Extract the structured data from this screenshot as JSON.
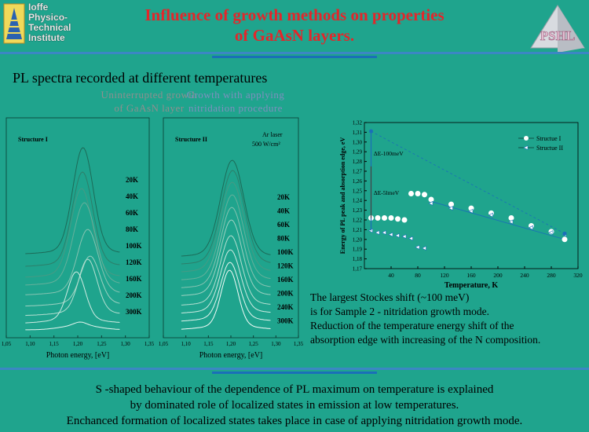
{
  "header": {
    "institute_lines": [
      "Ioffe",
      "Physico-",
      "Technical",
      "Institute"
    ],
    "title_line1": "Influence of growth methods on properties",
    "title_line2": "of  GaAsN layers.",
    "logo_right_text": "PSHL"
  },
  "subtitle": "PL spectra recorded at different temperatures",
  "left_column": {
    "heading_line1": "Uninterrupted growth",
    "heading_line2": "of GaAsN layer"
  },
  "right_column": {
    "heading_line1": "Growth with applying",
    "heading_line2": "nitridation procedure"
  },
  "colors": {
    "background": "#1fa48d",
    "title": "#e3262a",
    "accent_bar": "#1a6fb8",
    "series_1": "#ffffff",
    "series_2": "#1a6fb8"
  },
  "chart_data": [
    {
      "type": "line",
      "panel": "structure-1",
      "annotation": "Structure I",
      "xlabel": "Photon energy, [eV]",
      "xlim": [
        1.05,
        1.35
      ],
      "ylabel": "",
      "x_ticks": [
        "1,05",
        "1,10",
        "1,15",
        "1,20",
        "1,25",
        "1,30",
        "1,35"
      ],
      "series": [
        {
          "name": "20K",
          "peak_eV": 1.211,
          "width": 0.03,
          "amp": 130,
          "offset": 96
        },
        {
          "name": "40K",
          "peak_eV": 1.21,
          "width": 0.03,
          "amp": 115,
          "offset": 80
        },
        {
          "name": "60K",
          "peak_eV": 1.208,
          "width": 0.031,
          "amp": 108,
          "offset": 66
        },
        {
          "name": "80K",
          "peak_eV": 1.214,
          "width": 0.032,
          "amp": 100,
          "offset": 56
        },
        {
          "name": "100K",
          "peak_eV": 1.221,
          "width": 0.03,
          "amp": 78,
          "offset": 44
        },
        {
          "name": "120K",
          "peak_eV": 1.226,
          "width": 0.028,
          "amp": 58,
          "offset": 30
        },
        {
          "name": "160K",
          "peak_eV": 1.221,
          "width": 0.027,
          "amp": 66,
          "offset": 18
        },
        {
          "name": "200K",
          "peak_eV": 1.197,
          "width": 0.026,
          "amp": 60,
          "offset": 8
        },
        {
          "name": "300K",
          "peak_eV": 1.205,
          "width": 0.018,
          "amp": 4,
          "offset": 0
        }
      ]
    },
    {
      "type": "line",
      "panel": "structure-2",
      "annotation": "Structure II",
      "annotation2_line1": "Ar laser",
      "annotation2_line2": "500 W/cm²",
      "xlabel": "Photon energy, [eV]",
      "xlim": [
        1.05,
        1.35
      ],
      "ylabel": "",
      "x_ticks": [
        "1,05",
        "1,10",
        "1,15",
        "1,20",
        "1,25",
        "1,30",
        "1,35"
      ],
      "series": [
        {
          "name": "20K",
          "peak_eV": 1.203,
          "width": 0.036,
          "amp": 118,
          "offset": 92
        },
        {
          "name": "40K",
          "peak_eV": 1.204,
          "width": 0.036,
          "amp": 115,
          "offset": 82
        },
        {
          "name": "60K",
          "peak_eV": 1.203,
          "width": 0.036,
          "amp": 110,
          "offset": 72
        },
        {
          "name": "80K",
          "peak_eV": 1.203,
          "width": 0.035,
          "amp": 104,
          "offset": 62
        },
        {
          "name": "100K",
          "peak_eV": 1.202,
          "width": 0.034,
          "amp": 98,
          "offset": 52
        },
        {
          "name": "120K",
          "peak_eV": 1.201,
          "width": 0.033,
          "amp": 92,
          "offset": 42
        },
        {
          "name": "160K",
          "peak_eV": 1.2,
          "width": 0.032,
          "amp": 84,
          "offset": 30
        },
        {
          "name": "200K",
          "peak_eV": 1.199,
          "width": 0.031,
          "amp": 76,
          "offset": 20
        },
        {
          "name": "240K",
          "peak_eV": 1.198,
          "width": 0.029,
          "amp": 70,
          "offset": 10
        },
        {
          "name": "300K",
          "peak_eV": 1.197,
          "width": 0.026,
          "amp": 70,
          "offset": 0
        }
      ]
    },
    {
      "type": "scatter",
      "panel": "energy-vs-temperature",
      "xlabel": "Temperature, K",
      "ylabel": "Energy of PL peak and absorption edge, eV",
      "xlim": [
        0,
        320
      ],
      "ylim": [
        1.17,
        1.32
      ],
      "x_ticks": [
        40,
        80,
        120,
        160,
        200,
        240,
        280,
        320
      ],
      "y_ticks": [
        "1,17",
        "1,18",
        "1,19",
        "1,20",
        "1,21",
        "1,22",
        "1,23",
        "1,24",
        "1,25",
        "1,26",
        "1,27",
        "1,28",
        "1,29",
        "1,30",
        "1,31",
        "1,32"
      ],
      "legend_position": "top-right",
      "annotations": [
        "ΔE-100meV",
        "ΔE-5lmeV"
      ],
      "series": [
        {
          "name": "Structue I",
          "marker": "circle",
          "x": [
            10,
            20,
            30,
            40,
            50,
            60,
            70,
            80,
            90,
            100,
            130,
            160,
            190,
            220,
            250,
            280,
            300
          ],
          "y": [
            1.222,
            1.222,
            1.222,
            1.222,
            1.221,
            1.22,
            1.247,
            1.247,
            1.246,
            1.241,
            1.236,
            1.232,
            1.227,
            1.222,
            1.214,
            1.208,
            1.2
          ]
        },
        {
          "name": "Structue II",
          "marker": "triangle",
          "x": [
            10,
            20,
            30,
            40,
            50,
            60,
            70,
            80,
            90,
            100,
            130,
            160,
            190,
            220,
            250,
            280,
            300
          ],
          "y": [
            1.209,
            1.207,
            1.207,
            1.205,
            1.204,
            1.203,
            1.201,
            1.192,
            1.191,
            1.237,
            1.232,
            1.229,
            1.225,
            1.218,
            1.212,
            1.207,
            1.205
          ]
        },
        {
          "name": "",
          "marker": "dot",
          "x": [
            10,
            300
          ],
          "y": [
            1.311,
            1.206
          ]
        }
      ]
    }
  ],
  "notes": [
    "The largest  Stockes shift (~100 meV)",
    "is for Sample 2 - nitridation growth mode.",
    "Reduction of the temperature energy shift of the",
    "absorption edge  with increasing of  the N composition."
  ],
  "conclusion": [
    "S -shaped  behaviour of the dependence of PL maximum on temperature is explained",
    "by dominated  role of localized states in emission at low temperatures.",
    "Enchanced formation of localized states takes place in case of applying nitridation growth mode."
  ]
}
